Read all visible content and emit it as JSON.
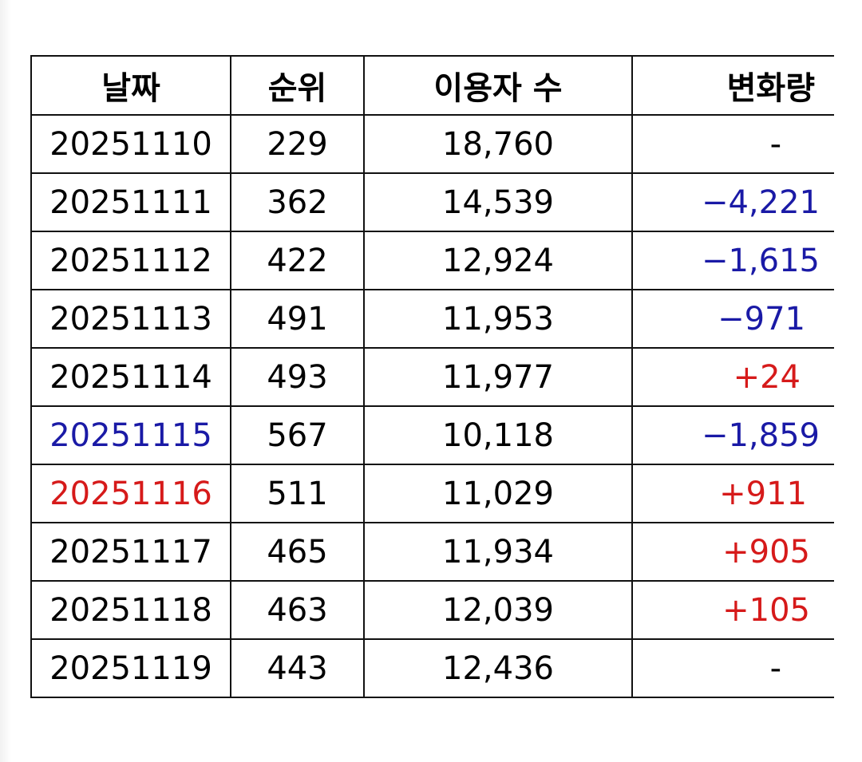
{
  "table": {
    "headers": {
      "date": "날짜",
      "rank": "순위",
      "users": "이용자 수",
      "change": "변화량"
    },
    "rows": [
      {
        "date": "20251110",
        "rank": "229",
        "users": "18,760",
        "change": "-"
      },
      {
        "date": "20251111",
        "rank": "362",
        "users": "14,539",
        "change": "−4,221"
      },
      {
        "date": "20251112",
        "rank": "422",
        "users": "12,924",
        "change": "−1,615"
      },
      {
        "date": "20251113",
        "rank": "491",
        "users": "11,953",
        "change": "−971"
      },
      {
        "date": "20251114",
        "rank": "493",
        "users": "11,977",
        "change": "+24"
      },
      {
        "date": "20251115",
        "rank": "567",
        "users": "10,118",
        "change": "−1,859"
      },
      {
        "date": "20251116",
        "rank": "511",
        "users": "11,029",
        "change": "+911"
      },
      {
        "date": "20251117",
        "rank": "465",
        "users": "11,934",
        "change": "+905"
      },
      {
        "date": "20251118",
        "rank": "463",
        "users": "12,039",
        "change": "+105"
      },
      {
        "date": "20251119",
        "rank": "443",
        "users": "12,436",
        "change": "-"
      }
    ]
  },
  "colors": {
    "negative": "#1a1aa6",
    "positive": "#d61a1a",
    "saturday_date": "#1a1aa6",
    "sunday_date": "#d61a1a",
    "border": "#111111"
  }
}
